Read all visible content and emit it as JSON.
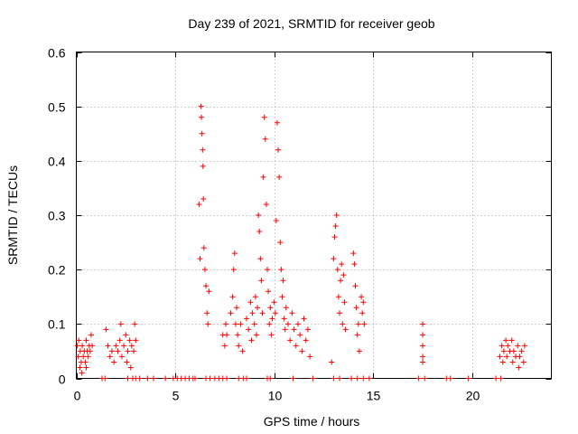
{
  "chart_data": {
    "type": "scatter",
    "title": "Day 239 of 2021, SRMTID for receiver geob",
    "xlabel": "GPS time / hours",
    "ylabel": "SRMTID / TECUs",
    "xlim": [
      0,
      24
    ],
    "ylim": [
      0,
      0.6
    ],
    "x_ticks": [
      0,
      5,
      10,
      15,
      20
    ],
    "x_tick_labels": [
      "0",
      "5",
      "10",
      "15",
      "20"
    ],
    "y_ticks": [
      0,
      0.1,
      0.2,
      0.3,
      0.4,
      0.5,
      0.6
    ],
    "y_tick_labels": [
      "0",
      "0.1",
      "0.2",
      "0.3",
      "0.4",
      "0.5",
      "0.6"
    ],
    "grid": true,
    "series_color": "#ff0000",
    "series": [
      {
        "name": "SRMTID",
        "marker": "plus",
        "points": [
          [
            0.05,
            0.06
          ],
          [
            0.1,
            0.04
          ],
          [
            0.12,
            0.07
          ],
          [
            0.18,
            0.02
          ],
          [
            0.2,
            0.05
          ],
          [
            0.25,
            0.03
          ],
          [
            0.3,
            0.06
          ],
          [
            0.35,
            0.04
          ],
          [
            0.4,
            0.05
          ],
          [
            0.45,
            0.03
          ],
          [
            0.5,
            0.07
          ],
          [
            0.55,
            0.05
          ],
          [
            0.6,
            0.04
          ],
          [
            0.65,
            0.06
          ],
          [
            0.7,
            0.05
          ],
          [
            0.75,
            0.08
          ],
          [
            0.8,
            0.06
          ],
          [
            0.28,
            0.01
          ],
          [
            0.5,
            0.02
          ],
          [
            1.5,
            0.09
          ],
          [
            1.6,
            0.06
          ],
          [
            1.7,
            0.04
          ],
          [
            1.8,
            0.05
          ],
          [
            1.9,
            0.03
          ],
          [
            2.0,
            0.06
          ],
          [
            2.1,
            0.05
          ],
          [
            2.2,
            0.07
          ],
          [
            2.25,
            0.1
          ],
          [
            2.3,
            0.04
          ],
          [
            2.4,
            0.06
          ],
          [
            2.5,
            0.08
          ],
          [
            2.55,
            0.03
          ],
          [
            2.6,
            0.05
          ],
          [
            2.7,
            0.07
          ],
          [
            2.75,
            0.02
          ],
          [
            2.8,
            0.06
          ],
          [
            2.9,
            0.05
          ],
          [
            2.95,
            0.1
          ],
          [
            3.0,
            0.07
          ],
          [
            6.2,
            0.32
          ],
          [
            6.25,
            0.22
          ],
          [
            6.3,
            0.5
          ],
          [
            6.32,
            0.48
          ],
          [
            6.35,
            0.45
          ],
          [
            6.38,
            0.42
          ],
          [
            6.4,
            0.39
          ],
          [
            6.42,
            0.33
          ],
          [
            6.45,
            0.24
          ],
          [
            6.5,
            0.2
          ],
          [
            6.55,
            0.17
          ],
          [
            6.6,
            0.12
          ],
          [
            6.65,
            0.1
          ],
          [
            6.7,
            0.16
          ],
          [
            7.4,
            0.08
          ],
          [
            7.5,
            0.06
          ],
          [
            7.55,
            0.1
          ],
          [
            7.6,
            0.08
          ],
          [
            7.8,
            0.12
          ],
          [
            7.9,
            0.15
          ],
          [
            7.95,
            0.2
          ],
          [
            8.0,
            0.23
          ],
          [
            8.05,
            0.1
          ],
          [
            8.1,
            0.13
          ],
          [
            8.15,
            0.08
          ],
          [
            8.2,
            0.06
          ],
          [
            8.3,
            0.1
          ],
          [
            8.4,
            0.05
          ],
          [
            8.6,
            0.11
          ],
          [
            8.7,
            0.09
          ],
          [
            8.8,
            0.14
          ],
          [
            8.85,
            0.07
          ],
          [
            8.9,
            0.12
          ],
          [
            9.0,
            0.1
          ],
          [
            9.05,
            0.15
          ],
          [
            9.1,
            0.08
          ],
          [
            9.15,
            0.13
          ],
          [
            9.2,
            0.3
          ],
          [
            9.25,
            0.27
          ],
          [
            9.3,
            0.22
          ],
          [
            9.35,
            0.18
          ],
          [
            9.4,
            0.12
          ],
          [
            9.45,
            0.37
          ],
          [
            9.5,
            0.48
          ],
          [
            9.55,
            0.44
          ],
          [
            9.6,
            0.32
          ],
          [
            9.65,
            0.2
          ],
          [
            9.7,
            0.16
          ],
          [
            9.75,
            0.1
          ],
          [
            9.8,
            0.13
          ],
          [
            9.85,
            0.08
          ],
          [
            9.9,
            0.11
          ],
          [
            10.0,
            0.14
          ],
          [
            10.05,
            0.12
          ],
          [
            10.1,
            0.29
          ],
          [
            10.15,
            0.47
          ],
          [
            10.2,
            0.42
          ],
          [
            10.25,
            0.37
          ],
          [
            10.3,
            0.25
          ],
          [
            10.35,
            0.2
          ],
          [
            10.4,
            0.15
          ],
          [
            10.45,
            0.18
          ],
          [
            10.5,
            0.11
          ],
          [
            10.55,
            0.09
          ],
          [
            10.6,
            0.13
          ],
          [
            10.7,
            0.1
          ],
          [
            10.8,
            0.07
          ],
          [
            10.9,
            0.12
          ],
          [
            11.0,
            0.09
          ],
          [
            11.1,
            0.06
          ],
          [
            11.2,
            0.1
          ],
          [
            11.3,
            0.08
          ],
          [
            11.4,
            0.05
          ],
          [
            11.5,
            0.11
          ],
          [
            11.6,
            0.07
          ],
          [
            11.7,
            0.09
          ],
          [
            11.8,
            0.04
          ],
          [
            13.0,
            0.22
          ],
          [
            13.05,
            0.26
          ],
          [
            13.1,
            0.28
          ],
          [
            13.15,
            0.3
          ],
          [
            13.2,
            0.2
          ],
          [
            13.25,
            0.15
          ],
          [
            13.3,
            0.12
          ],
          [
            13.35,
            0.18
          ],
          [
            13.4,
            0.21
          ],
          [
            13.45,
            0.1
          ],
          [
            13.5,
            0.19
          ],
          [
            13.55,
            0.14
          ],
          [
            13.6,
            0.09
          ],
          [
            12.9,
            0.03
          ],
          [
            14.0,
            0.23
          ],
          [
            14.05,
            0.21
          ],
          [
            14.1,
            0.17
          ],
          [
            14.15,
            0.13
          ],
          [
            14.2,
            0.08
          ],
          [
            14.25,
            0.1
          ],
          [
            14.3,
            0.05
          ],
          [
            14.4,
            0.15
          ],
          [
            14.45,
            0.12
          ],
          [
            14.5,
            0.14
          ],
          [
            14.55,
            0.1
          ],
          [
            17.5,
            0.1
          ],
          [
            17.5,
            0.08
          ],
          [
            17.5,
            0.06
          ],
          [
            17.5,
            0.04
          ],
          [
            17.5,
            0.03
          ],
          [
            21.4,
            0.04
          ],
          [
            21.5,
            0.06
          ],
          [
            21.55,
            0.03
          ],
          [
            21.6,
            0.05
          ],
          [
            21.7,
            0.07
          ],
          [
            21.75,
            0.04
          ],
          [
            21.8,
            0.06
          ],
          [
            21.9,
            0.05
          ],
          [
            22.0,
            0.07
          ],
          [
            22.05,
            0.03
          ],
          [
            22.1,
            0.05
          ],
          [
            22.2,
            0.04
          ],
          [
            22.3,
            0.06
          ],
          [
            22.35,
            0.02
          ],
          [
            22.4,
            0.04
          ],
          [
            22.5,
            0.05
          ],
          [
            22.6,
            0.03
          ],
          [
            22.65,
            0.06
          ],
          [
            1.3,
            0.0
          ],
          [
            1.45,
            0.0
          ],
          [
            2.6,
            0.0
          ],
          [
            2.85,
            0.0
          ],
          [
            3.0,
            0.0
          ],
          [
            3.2,
            0.0
          ],
          [
            3.6,
            0.0
          ],
          [
            3.9,
            0.0
          ],
          [
            4.5,
            0.0
          ],
          [
            4.9,
            0.0
          ],
          [
            5.1,
            0.0
          ],
          [
            5.3,
            0.0
          ],
          [
            5.5,
            0.0
          ],
          [
            5.7,
            0.0
          ],
          [
            5.9,
            0.0
          ],
          [
            6.0,
            0.0
          ],
          [
            6.55,
            0.0
          ],
          [
            6.75,
            0.0
          ],
          [
            7.0,
            0.0
          ],
          [
            7.2,
            0.0
          ],
          [
            7.4,
            0.0
          ],
          [
            7.6,
            0.0
          ],
          [
            8.2,
            0.0
          ],
          [
            8.45,
            0.0
          ],
          [
            8.6,
            0.0
          ],
          [
            9.65,
            0.0
          ],
          [
            9.8,
            0.0
          ],
          [
            10.95,
            0.0
          ],
          [
            11.95,
            0.0
          ],
          [
            13.0,
            0.0
          ],
          [
            13.3,
            0.0
          ],
          [
            13.9,
            0.0
          ],
          [
            14.2,
            0.0
          ],
          [
            14.5,
            0.0
          ],
          [
            14.8,
            0.0
          ],
          [
            17.3,
            0.0
          ],
          [
            17.6,
            0.0
          ],
          [
            18.7,
            0.0
          ],
          [
            18.9,
            0.0
          ],
          [
            19.8,
            0.0
          ],
          [
            21.2,
            0.0
          ],
          [
            21.45,
            0.0
          ]
        ]
      }
    ]
  }
}
